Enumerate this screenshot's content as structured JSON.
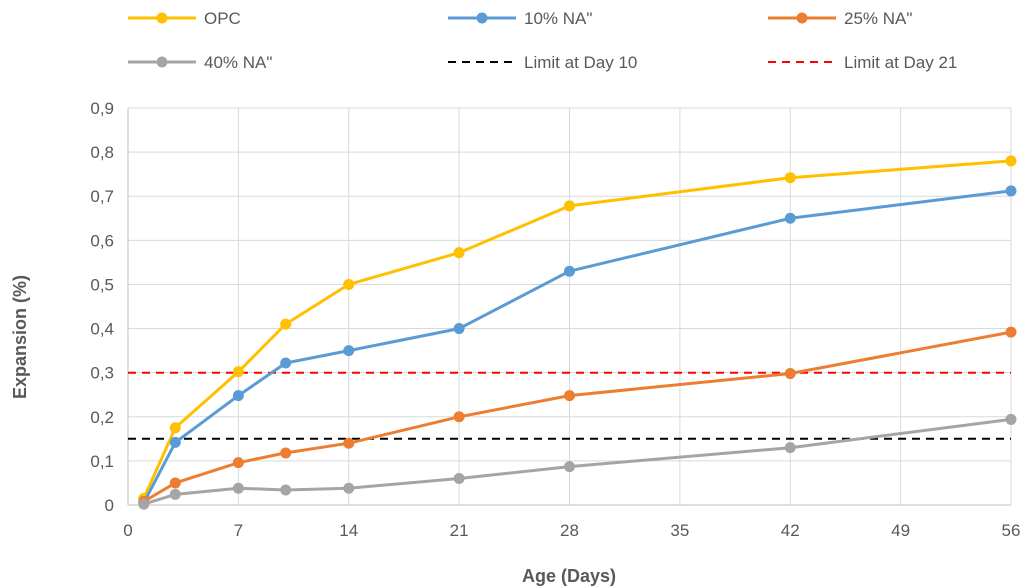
{
  "chart_data": {
    "type": "line",
    "title": "",
    "xlabel": "Age (Days)",
    "ylabel": "Expansion (%)",
    "xlim": [
      0,
      56
    ],
    "ylim": [
      0,
      0.9
    ],
    "x_ticks": [
      0,
      7,
      14,
      21,
      28,
      35,
      42,
      49,
      56
    ],
    "x_tick_labels": [
      "0",
      "7",
      "14",
      "21",
      "28",
      "35",
      "42",
      "49",
      "56"
    ],
    "y_ticks": [
      0,
      0.1,
      0.2,
      0.3,
      0.4,
      0.5,
      0.6,
      0.7,
      0.8,
      0.9
    ],
    "y_tick_labels": [
      "0",
      "0,1",
      "0,2",
      "0,3",
      "0,4",
      "0,5",
      "0,6",
      "0,7",
      "0,8",
      "0,9"
    ],
    "grid": "vertical and horizontal",
    "legend_position": "top",
    "series": [
      {
        "name": "OPC",
        "color": "#FFC000",
        "style": "solid-marker",
        "x": [
          1,
          3,
          7,
          10,
          14,
          21,
          28,
          42,
          56
        ],
        "y": [
          0.015,
          0.175,
          0.302,
          0.41,
          0.5,
          0.572,
          0.678,
          0.742,
          0.78
        ]
      },
      {
        "name": "10% NA\"",
        "color": "#5B9BD5",
        "style": "solid-marker",
        "x": [
          1,
          3,
          7,
          10,
          14,
          21,
          28,
          42,
          56
        ],
        "y": [
          0.005,
          0.142,
          0.248,
          0.322,
          0.35,
          0.4,
          0.53,
          0.65,
          0.712
        ]
      },
      {
        "name": "25% NA\"",
        "color": "#ED7D31",
        "style": "solid-marker",
        "x": [
          1,
          3,
          7,
          10,
          14,
          21,
          28,
          42,
          56
        ],
        "y": [
          0.008,
          0.05,
          0.096,
          0.118,
          0.14,
          0.2,
          0.248,
          0.298,
          0.392
        ]
      },
      {
        "name": "40% NA\"",
        "color": "#A5A5A5",
        "style": "solid-marker",
        "x": [
          1,
          3,
          7,
          10,
          14,
          21,
          28,
          42,
          56
        ],
        "y": [
          0.002,
          0.024,
          0.038,
          0.034,
          0.038,
          0.06,
          0.087,
          0.13,
          0.194
        ]
      },
      {
        "name": "Limit at Day 10",
        "color": "#000000",
        "style": "dashed",
        "x": [
          0,
          56
        ],
        "y": [
          0.15,
          0.15
        ]
      },
      {
        "name": "Limit at Day 21",
        "color": "#FF0000",
        "style": "dashed",
        "x": [
          0,
          56
        ],
        "y": [
          0.3,
          0.3
        ]
      }
    ],
    "colors": {
      "grid": "#D9D9D9",
      "axis": "#BFBFBF",
      "text": "#595959"
    }
  }
}
